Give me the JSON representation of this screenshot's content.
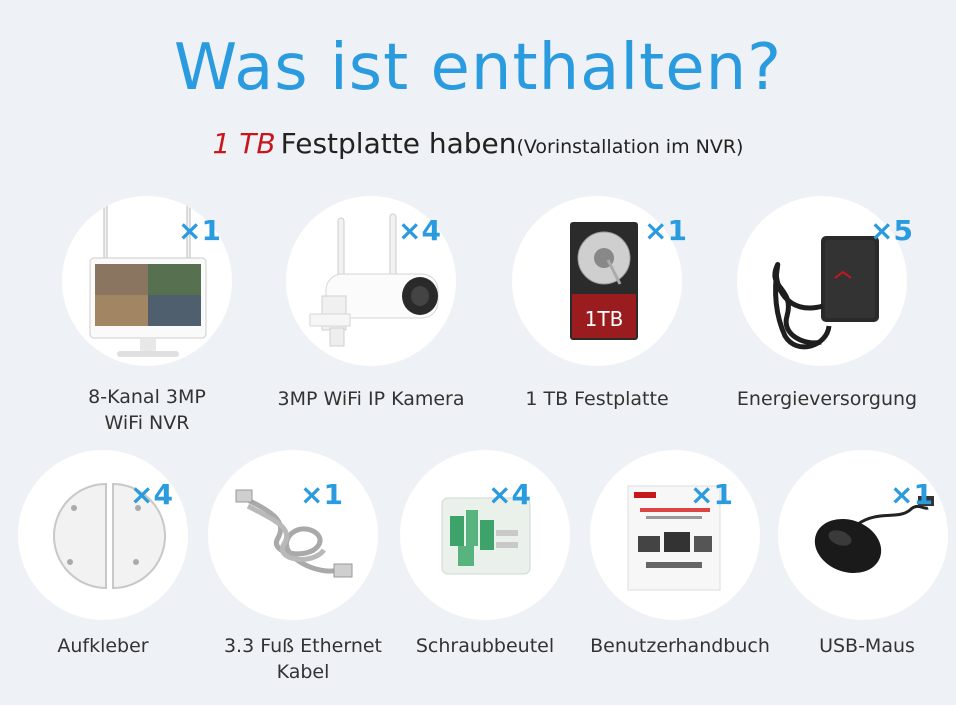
{
  "header": {
    "title": "Was ist enthalten?",
    "subtitle_highlight": "1 TB",
    "subtitle_main": "Festplatte haben",
    "subtitle_note": "(Vorinstallation im NVR)"
  },
  "colors": {
    "accent_blue": "#2b9be0",
    "highlight_red": "#c8161d",
    "background": "#eef2f6"
  },
  "items": [
    {
      "name": "8-Kanal 3MP\nWiFi NVR",
      "quantity": "×1",
      "icon": "nvr-monitor-icon"
    },
    {
      "name": "3MP WiFi IP Kamera",
      "quantity": "×4",
      "icon": "wifi-camera-icon"
    },
    {
      "name": "1 TB Festplatte",
      "quantity": "×1",
      "icon": "hard-drive-icon",
      "drive_label": "1TB"
    },
    {
      "name": "Energieversorgung",
      "quantity": "×5",
      "icon": "power-adapter-icon"
    },
    {
      "name": "Aufkleber",
      "quantity": "×4",
      "icon": "sticker-icon"
    },
    {
      "name": "3.3 Fuß Ethernet\nKabel",
      "quantity": "×1",
      "icon": "ethernet-cable-icon"
    },
    {
      "name": "Schraubbeutel",
      "quantity": "×4",
      "icon": "screw-bag-icon"
    },
    {
      "name": "Benutzerhandbuch",
      "quantity": "×1",
      "icon": "user-manual-icon"
    },
    {
      "name": "USB-Maus",
      "quantity": "×1",
      "icon": "usb-mouse-icon"
    }
  ]
}
